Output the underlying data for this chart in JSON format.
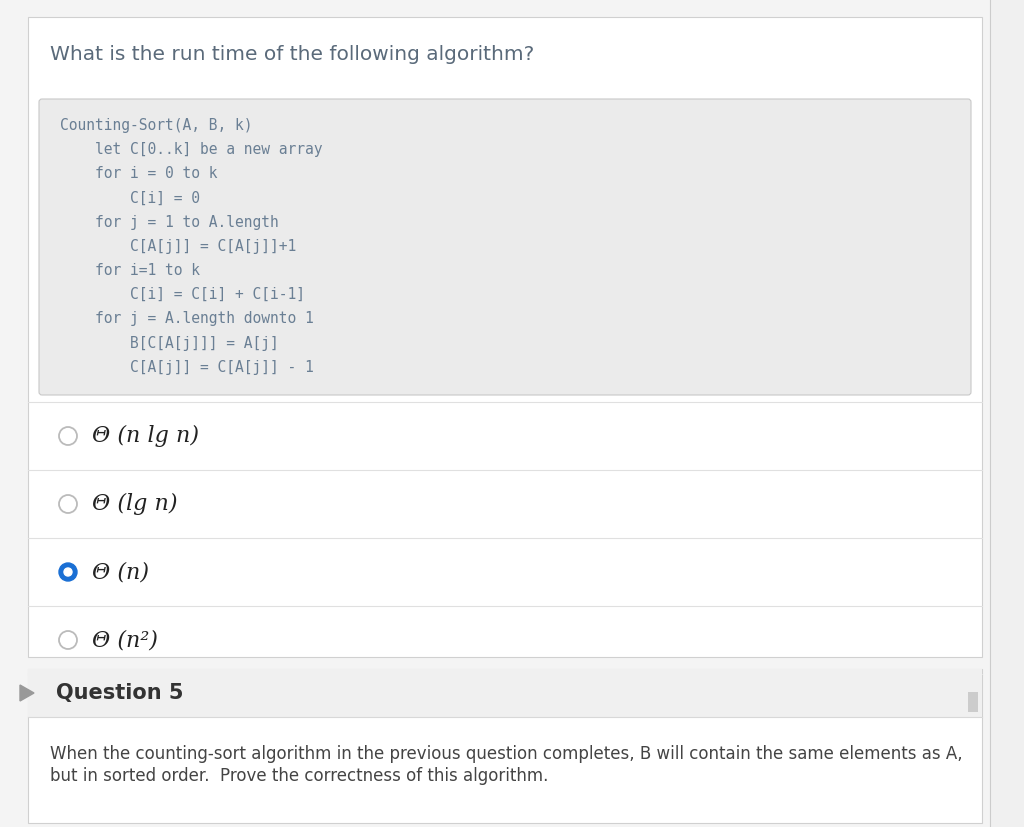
{
  "page_bg": "#f4f4f4",
  "card_bg": "#ffffff",
  "card_border": "#d0d0d0",
  "question_text": "What is the run time of the following algorithm?",
  "question_color": "#5a6a7a",
  "question_fontsize": 14.5,
  "code_box_bg": "#ebebeb",
  "code_box_border": "#c8c8c8",
  "code_color": "#6a7f94",
  "code_fontsize": 10.5,
  "code_lines": [
    "Counting-Sort(A, B, k)",
    "    let C[0..k] be a new array",
    "    for i = 0 to k",
    "        C[i] = 0",
    "    for j = 1 to A.length",
    "        C[A[j]] = C[A[j]]+1",
    "    for i=1 to k",
    "        C[i] = C[i] + C[i-1]",
    "    for j = A.length downto 1",
    "        B[C[A[j]]] = A[j]",
    "        C[A[j]] = C[A[j]] - 1"
  ],
  "options": [
    {
      "text": "Θ (n lg n)",
      "selected": false
    },
    {
      "text": "Θ (lg n)",
      "selected": false
    },
    {
      "text": "Θ (n)",
      "selected": true
    },
    {
      "text": "Θ (n²)",
      "selected": false
    }
  ],
  "option_fontsize": 16,
  "option_color": "#222222",
  "radio_selected_color": "#1a6fd4",
  "radio_unselected_color": "#bbbbbb",
  "divider_color": "#e0e0e0",
  "q5_header": "Question 5",
  "q5_header_fontsize": 15,
  "q5_header_bg": "#f0f0f0",
  "q5_header_border": "#d8d8d8",
  "q5_text_line1": "When the counting-sort algorithm in the previous question completes, B will contain the same elements as A,",
  "q5_text_line2": "but in sorted order.  Prove the correctness of this algorithm.",
  "q5_fontsize": 12,
  "q5_text_color": "#444444",
  "scroll_bar_bg": "#e8e8e8",
  "right_panel_bg": "#f0f0f0"
}
